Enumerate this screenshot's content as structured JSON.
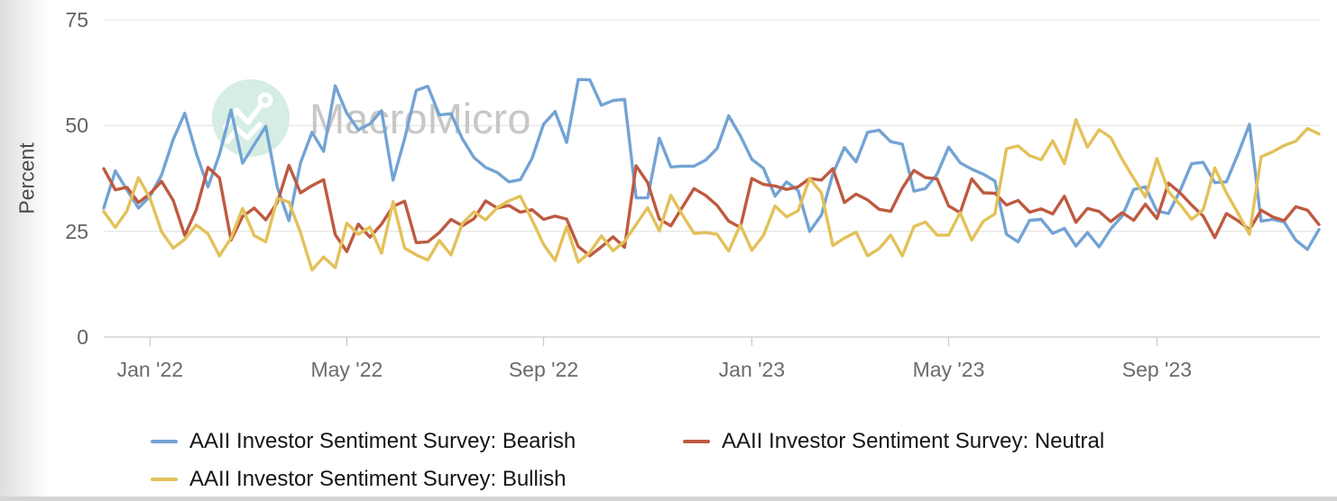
{
  "chart_data": {
    "type": "line",
    "ylabel": "Percent",
    "ylim": [
      0,
      75
    ],
    "y_ticks": [
      75,
      50,
      25,
      0
    ],
    "grid": "horizontal",
    "legend_position": "bottom-left",
    "watermark": "MacroMicro",
    "x_ticks": [
      {
        "label": "Jan '22",
        "index": 4
      },
      {
        "label": "May '22",
        "index": 21
      },
      {
        "label": "Sep '22",
        "index": 38
      },
      {
        "label": "Jan '23",
        "index": 56
      },
      {
        "label": "May '23",
        "index": 73
      },
      {
        "label": "Sep '23",
        "index": 91
      }
    ],
    "x": [
      "2021-12-09",
      "2021-12-16",
      "2021-12-23",
      "2021-12-30",
      "2022-01-06",
      "2022-01-13",
      "2022-01-20",
      "2022-01-27",
      "2022-02-03",
      "2022-02-10",
      "2022-02-17",
      "2022-02-24",
      "2022-03-03",
      "2022-03-10",
      "2022-03-17",
      "2022-03-24",
      "2022-03-31",
      "2022-04-07",
      "2022-04-14",
      "2022-04-21",
      "2022-04-28",
      "2022-05-05",
      "2022-05-12",
      "2022-05-19",
      "2022-05-26",
      "2022-06-02",
      "2022-06-09",
      "2022-06-16",
      "2022-06-23",
      "2022-06-30",
      "2022-07-07",
      "2022-07-14",
      "2022-07-21",
      "2022-07-28",
      "2022-08-04",
      "2022-08-11",
      "2022-08-18",
      "2022-08-25",
      "2022-09-01",
      "2022-09-08",
      "2022-09-15",
      "2022-09-22",
      "2022-09-29",
      "2022-10-06",
      "2022-10-13",
      "2022-10-20",
      "2022-10-27",
      "2022-11-03",
      "2022-11-10",
      "2022-11-17",
      "2022-11-24",
      "2022-12-01",
      "2022-12-08",
      "2022-12-15",
      "2022-12-22",
      "2022-12-29",
      "2023-01-05",
      "2023-01-12",
      "2023-01-19",
      "2023-01-26",
      "2023-02-02",
      "2023-02-09",
      "2023-02-16",
      "2023-02-23",
      "2023-03-02",
      "2023-03-09",
      "2023-03-16",
      "2023-03-23",
      "2023-03-30",
      "2023-04-06",
      "2023-04-13",
      "2023-04-20",
      "2023-04-27",
      "2023-05-04",
      "2023-05-11",
      "2023-05-18",
      "2023-05-25",
      "2023-06-01",
      "2023-06-08",
      "2023-06-15",
      "2023-06-22",
      "2023-06-29",
      "2023-07-06",
      "2023-07-13",
      "2023-07-20",
      "2023-07-27",
      "2023-08-03",
      "2023-08-10",
      "2023-08-17",
      "2023-08-24",
      "2023-08-31",
      "2023-09-07",
      "2023-09-14",
      "2023-09-21",
      "2023-09-28",
      "2023-10-05",
      "2023-10-12",
      "2023-10-19",
      "2023-10-26",
      "2023-11-02",
      "2023-11-09",
      "2023-11-16",
      "2023-11-23",
      "2023-11-30",
      "2023-12-07",
      "2023-12-14"
    ],
    "series": [
      {
        "name": "AAII Investor Sentiment Survey: Bearish",
        "color": "#73A3D4",
        "values": [
          30.5,
          39.3,
          34.8,
          30.5,
          33.3,
          38.3,
          46.7,
          52.9,
          43.4,
          35.5,
          43.2,
          53.7,
          41.1,
          45.5,
          49.8,
          35.4,
          27.5,
          41.2,
          48.4,
          43.9,
          59.4,
          52.9,
          49.0,
          50.4,
          53.5,
          37.1,
          46.9,
          58.3,
          59.3,
          52.5,
          52.8,
          46.8,
          42.4,
          40.1,
          38.9,
          36.7,
          37.2,
          42.2,
          50.3,
          53.3,
          46.0,
          60.9,
          60.8,
          54.8,
          55.9,
          56.2,
          32.9,
          32.9,
          47.0,
          40.2,
          40.4,
          40.4,
          41.8,
          44.6,
          52.3,
          47.6,
          42.0,
          39.9,
          33.3,
          36.7,
          34.6,
          25.0,
          28.8,
          38.6,
          44.8,
          41.4,
          48.4,
          48.9,
          46.2,
          45.6,
          34.5,
          35.1,
          38.5,
          44.9,
          41.2,
          39.7,
          38.5,
          36.9,
          24.3,
          22.5,
          27.6,
          27.8,
          24.5,
          25.7,
          21.5,
          24.7,
          21.3,
          25.5,
          28.6,
          34.9,
          35.5,
          29.8,
          29.2,
          34.6,
          41.0,
          41.3,
          36.5,
          36.7,
          43.2,
          50.3,
          27.4,
          27.8,
          27.2,
          22.9,
          20.7,
          25.4
        ]
      },
      {
        "name": "AAII Investor Sentiment Survey: Neutral",
        "color": "#BE5A41",
        "values": [
          39.8,
          34.8,
          35.4,
          31.8,
          33.9,
          36.8,
          32.3,
          24.0,
          30.1,
          40.1,
          37.6,
          22.9,
          28.5,
          30.5,
          27.7,
          31.8,
          40.6,
          34.1,
          35.8,
          37.2,
          24.2,
          20.2,
          26.7,
          23.6,
          26.7,
          30.9,
          32.1,
          22.3,
          22.5,
          24.7,
          27.8,
          26.3,
          28.0,
          32.2,
          30.5,
          31.1,
          29.5,
          30.1,
          27.8,
          28.6,
          27.9,
          21.4,
          19.2,
          21.3,
          23.7,
          21.2,
          40.5,
          36.5,
          27.9,
          26.3,
          30.7,
          35.1,
          33.5,
          31.1,
          27.4,
          25.9,
          37.5,
          36.1,
          35.7,
          34.9,
          35.5,
          37.5,
          37.1,
          39.8,
          31.8,
          33.8,
          32.4,
          30.2,
          29.7,
          35.2,
          39.4,
          37.7,
          37.4,
          31.0,
          29.4,
          37.4,
          34.1,
          34.0,
          31.2,
          32.3,
          29.5,
          30.3,
          29.1,
          33.3,
          27.1,
          30.4,
          29.7,
          27.3,
          29.4,
          27.6,
          31.4,
          28.0,
          36.4,
          34.1,
          31.2,
          28.6,
          23.5,
          29.2,
          27.5,
          25.4,
          30.0,
          28.4,
          27.5,
          30.8,
          30.0,
          26.6
        ]
      },
      {
        "name": "AAII Investor Sentiment Survey: Bullish",
        "color": "#E3C159",
        "values": [
          29.7,
          25.9,
          29.8,
          37.7,
          32.8,
          24.9,
          21.0,
          23.1,
          26.5,
          24.4,
          19.2,
          23.4,
          30.4,
          24.0,
          22.5,
          32.8,
          31.9,
          24.7,
          15.8,
          18.9,
          16.4,
          26.9,
          24.3,
          26.0,
          19.8,
          32.0,
          21.0,
          19.4,
          18.2,
          22.8,
          19.4,
          26.9,
          29.6,
          27.7,
          30.6,
          32.2,
          33.3,
          27.7,
          21.9,
          18.1,
          26.1,
          17.7,
          20.0,
          23.9,
          20.4,
          22.6,
          26.6,
          30.6,
          25.1,
          33.5,
          28.9,
          24.5,
          24.7,
          24.3,
          20.3,
          26.5,
          20.5,
          24.0,
          31.0,
          28.4,
          29.9,
          37.5,
          34.1,
          21.6,
          23.4,
          24.8,
          19.2,
          20.9,
          24.1,
          19.2,
          26.1,
          27.2,
          24.1,
          24.1,
          29.4,
          22.9,
          27.4,
          29.1,
          44.5,
          45.2,
          42.9,
          41.9,
          46.4,
          41.0,
          51.4,
          44.9,
          49.0,
          47.2,
          42.0,
          37.5,
          33.1,
          42.2,
          34.4,
          31.3,
          27.8,
          30.1,
          40.0,
          34.1,
          29.3,
          24.3,
          42.6,
          43.8,
          45.3,
          46.3,
          49.3,
          48.0
        ]
      }
    ],
    "colors": {
      "grid": "#E7E7E7",
      "axis": "#CBCBCB",
      "tick_label": "#6B6B6B",
      "watermark_text": "#C7C7C7",
      "watermark_badge": "#D5EDE3"
    }
  },
  "legend": {
    "bearish": "AAII Investor Sentiment Survey: Bearish",
    "neutral": "AAII Investor Sentiment Survey: Neutral",
    "bullish": "AAII Investor Sentiment Survey: Bullish"
  }
}
